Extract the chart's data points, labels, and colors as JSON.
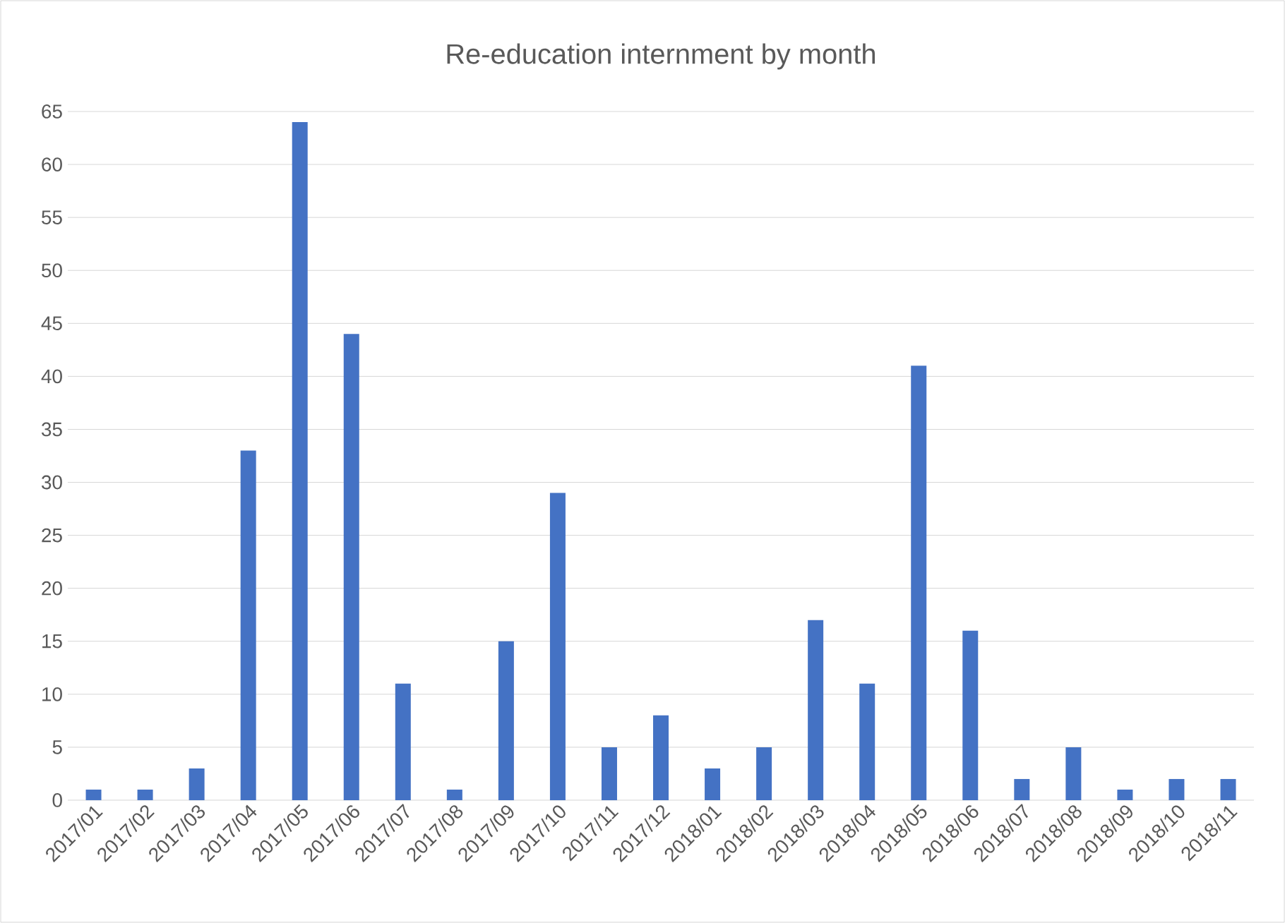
{
  "chart_data": {
    "type": "bar",
    "title": "Re-education internment by month",
    "categories": [
      "2017/01",
      "2017/02",
      "2017/03",
      "2017/04",
      "2017/05",
      "2017/06",
      "2017/07",
      "2017/08",
      "2017/09",
      "2017/10",
      "2017/11",
      "2017/12",
      "2018/01",
      "2018/02",
      "2018/03",
      "2018/04",
      "2018/05",
      "2018/06",
      "2018/07",
      "2018/08",
      "2018/09",
      "2018/10",
      "2018/11"
    ],
    "values": [
      1,
      1,
      3,
      33,
      64,
      44,
      11,
      1,
      15,
      29,
      5,
      8,
      3,
      5,
      17,
      11,
      41,
      16,
      2,
      5,
      1,
      2,
      2
    ],
    "color": "#4472c4",
    "ylim": [
      0,
      65
    ],
    "yticks": [
      0,
      5,
      10,
      15,
      20,
      25,
      30,
      35,
      40,
      45,
      50,
      55,
      60,
      65
    ],
    "grid": "y"
  }
}
